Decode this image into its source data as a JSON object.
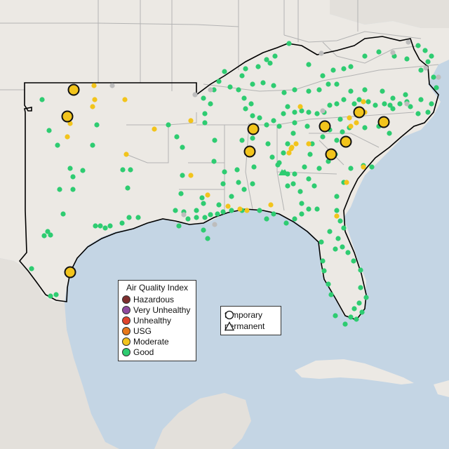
{
  "colors": {
    "ocean": "#c4d5e4",
    "land": "#ece9e4",
    "foreign_land": "#e3e0db",
    "state_border": "#b3b3b3",
    "region_outline": "#000000",
    "hazardous": "#7e2e2e",
    "very_unhealthy": "#8e4a9e",
    "unhealthy": "#e0442c",
    "usg": "#e8781a",
    "moderate": "#f2c41c",
    "good": "#2ecc71",
    "no_data": "#bdbdbd"
  },
  "aqi_legend": {
    "title": "Air Quality Index",
    "items": [
      {
        "label": "Hazardous",
        "color": "#7e2e2e"
      },
      {
        "label": "Very Unhealthy",
        "color": "#8e4a9e"
      },
      {
        "label": "Unhealthy",
        "color": "#e0442c"
      },
      {
        "label": "USG",
        "color": "#e8781a"
      },
      {
        "label": "Moderate",
        "color": "#f2c41c"
      },
      {
        "label": "Good",
        "color": "#2ecc71"
      }
    ]
  },
  "type_legend": {
    "items": [
      {
        "label": "temporary",
        "shape": "circle-icon"
      },
      {
        "label": "permanent",
        "shape": "triangle-icon"
      }
    ]
  }
}
